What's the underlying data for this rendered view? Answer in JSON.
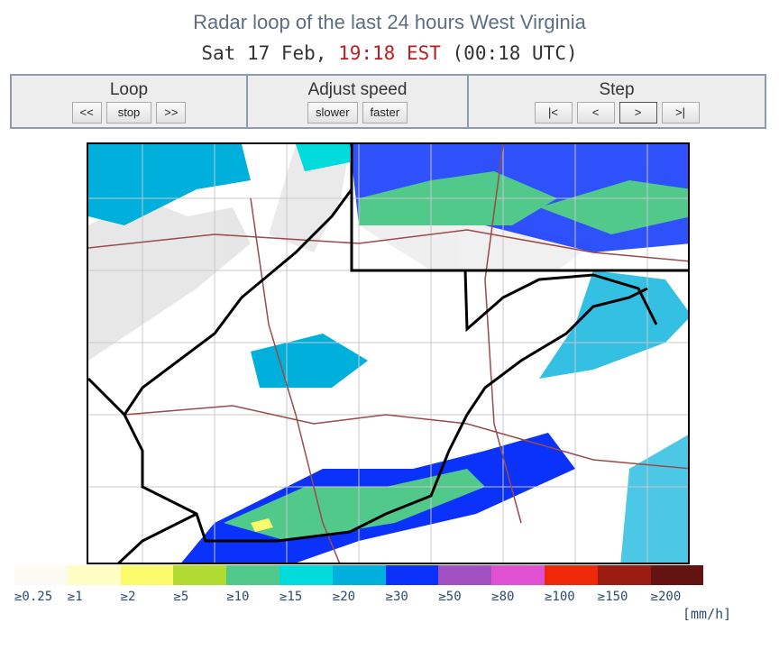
{
  "header": {
    "title": "Radar loop of the last 24 hours West Virginia",
    "time_prefix": "Sat 17 Feb, ",
    "time_local": "19:18 EST",
    "time_utc": " (00:18 UTC)"
  },
  "controls": {
    "loop": {
      "label": "Loop",
      "buttons": [
        "<<",
        "stop",
        ">>"
      ]
    },
    "speed": {
      "label": "Adjust speed",
      "buttons": [
        "slower",
        "faster"
      ]
    },
    "step": {
      "label": "Step",
      "buttons": [
        "|<",
        "<",
        ">",
        ">|"
      ]
    }
  },
  "legend": {
    "unit": "[mm/h]",
    "items": [
      {
        "label": "≥0.25",
        "color": "#fbfbf3"
      },
      {
        "label": "≥1",
        "color": "#fdfdc4"
      },
      {
        "label": "≥2",
        "color": "#fafa6a"
      },
      {
        "label": "≥5",
        "color": "#b0dc32"
      },
      {
        "label": "≥10",
        "color": "#50c98a"
      },
      {
        "label": "≥15",
        "color": "#00dcdc"
      },
      {
        "label": "≥20",
        "color": "#00b0dc"
      },
      {
        "label": "≥30",
        "color": "#0a32fa"
      },
      {
        "label": "≥50",
        "color": "#a050c0"
      },
      {
        "label": "≥80",
        "color": "#e050d2"
      },
      {
        "label": "≥100",
        "color": "#ef280a"
      },
      {
        "label": "≥150",
        "color": "#9b1c10"
      },
      {
        "label": "≥200",
        "color": "#641410"
      }
    ]
  }
}
